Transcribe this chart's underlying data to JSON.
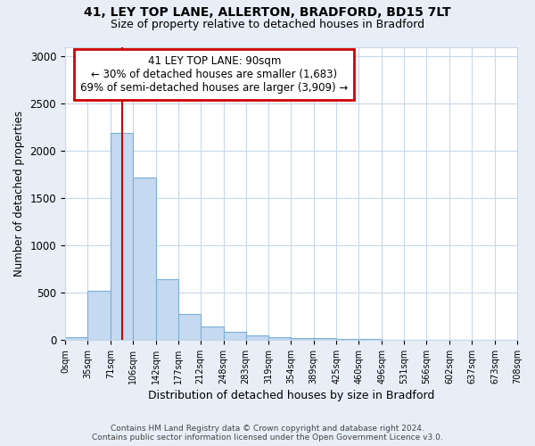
{
  "title1": "41, LEY TOP LANE, ALLERTON, BRADFORD, BD15 7LT",
  "title2": "Size of property relative to detached houses in Bradford",
  "xlabel": "Distribution of detached houses by size in Bradford",
  "ylabel": "Number of detached properties",
  "bin_edges": [
    0,
    35,
    71,
    106,
    142,
    177,
    212,
    248,
    283,
    319,
    354,
    389,
    425,
    460,
    496,
    531,
    566,
    602,
    637,
    673,
    708
  ],
  "bar_heights": [
    30,
    520,
    2190,
    1720,
    640,
    270,
    140,
    80,
    45,
    30,
    20,
    15,
    10,
    5,
    3,
    2,
    1,
    1,
    1,
    0
  ],
  "bar_color": "#c5d9f0",
  "bar_edgecolor": "#7bafd4",
  "vline_x": 90,
  "vline_color": "#cc0000",
  "annotation_line1": "41 LEY TOP LANE: 90sqm",
  "annotation_line2": "← 30% of detached houses are smaller (1,683)",
  "annotation_line3": "69% of semi-detached houses are larger (3,909) →",
  "annotation_box_color": "#cc0000",
  "ylim": [
    0,
    3100
  ],
  "yticks": [
    0,
    500,
    1000,
    1500,
    2000,
    2500,
    3000
  ],
  "footer_line1": "Contains HM Land Registry data © Crown copyright and database right 2024.",
  "footer_line2": "Contains public sector information licensed under the Open Government Licence v3.0.",
  "bg_color": "#e8eef7",
  "plot_bg_color": "#ffffff",
  "grid_color": "#c8d8ea",
  "title1_fontsize": 10,
  "title2_fontsize": 9
}
